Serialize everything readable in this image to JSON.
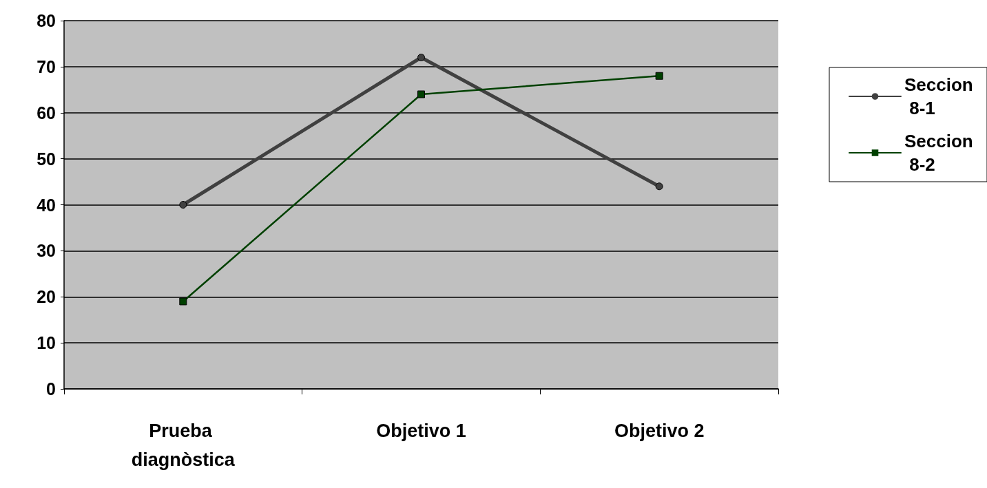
{
  "chart_data": {
    "type": "line",
    "categories": [
      "Prueba diagnòstica",
      "Objetivo 1",
      "Objetivo 2"
    ],
    "series": [
      {
        "name": "Seccion 8-1",
        "color": "#404040",
        "values": [
          40,
          72,
          44
        ],
        "marker": "circle"
      },
      {
        "name": "Seccion 8-2",
        "color": "#004000",
        "values": [
          19,
          64,
          68
        ],
        "marker": "square"
      }
    ],
    "ylim": [
      0,
      80
    ],
    "yticks": [
      0,
      10,
      20,
      30,
      40,
      50,
      60,
      70,
      80
    ],
    "grid": "y",
    "legend": "right"
  }
}
